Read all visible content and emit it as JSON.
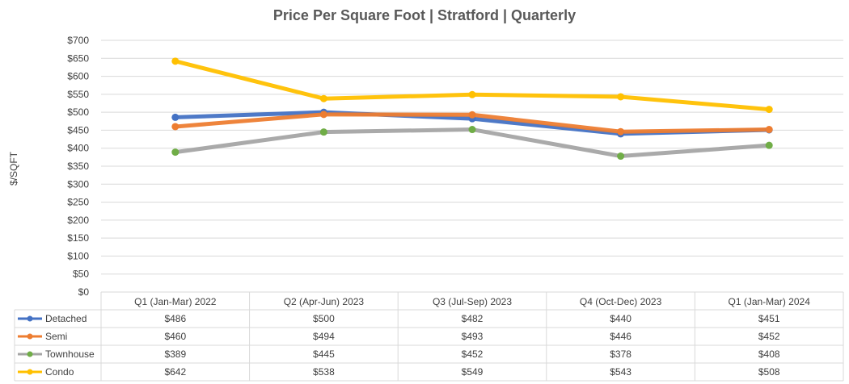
{
  "chart_data": {
    "type": "line",
    "title": "Price Per Square Foot | Stratford | Quarterly",
    "xlabel": "",
    "ylabel": "$/SQFT",
    "ylim": [
      0,
      700
    ],
    "y_ticks": [
      0,
      50,
      100,
      150,
      200,
      250,
      300,
      350,
      400,
      450,
      500,
      550,
      600,
      650,
      700
    ],
    "y_tick_labels": [
      "$0",
      "$50",
      "$100",
      "$150",
      "$200",
      "$250",
      "$300",
      "$350",
      "$400",
      "$450",
      "$500",
      "$550",
      "$600",
      "$650",
      "$700"
    ],
    "grid": true,
    "legend": "data-table-below",
    "categories": [
      "Q1 (Jan-Mar) 2022",
      "Q2 (Apr-Jun) 2023",
      "Q3 (Jul-Sep) 2023",
      "Q4 (Oct-Dec) 2023",
      "Q1 (Jan-Mar) 2024"
    ],
    "series": [
      {
        "name": "Detached",
        "color": "#4472c4",
        "values": [
          486,
          500,
          482,
          440,
          451
        ],
        "labels": [
          "$486",
          "$500",
          "$482",
          "$440",
          "$451"
        ]
      },
      {
        "name": "Semi",
        "color": "#ed7d31",
        "values": [
          460,
          494,
          493,
          446,
          452
        ],
        "labels": [
          "$460",
          "$494",
          "$493",
          "$446",
          "$452"
        ]
      },
      {
        "name": "Townhouse",
        "color": "#a5a5a5",
        "values": [
          389,
          445,
          452,
          378,
          408
        ],
        "labels": [
          "$389",
          "$445",
          "$452",
          "$378",
          "$408"
        ]
      },
      {
        "name": "Condo",
        "color": "#ffc000",
        "values": [
          642,
          538,
          549,
          543,
          508
        ],
        "labels": [
          "$642",
          "$538",
          "$549",
          "$543",
          "$508"
        ]
      }
    ],
    "marker_color": "#70ad47"
  }
}
